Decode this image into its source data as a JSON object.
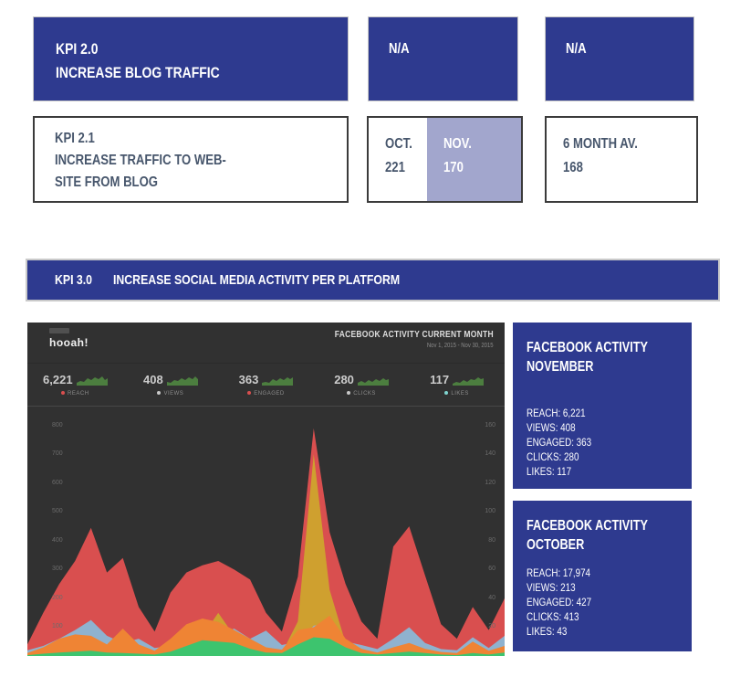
{
  "kpi2": {
    "title_line1": "KPI 2.0",
    "title_line2": "INCREASE BLOG TRAFFIC",
    "na1": "N/A",
    "na2": "N/A"
  },
  "kpi21": {
    "lines": [
      "KPI 2.1",
      "INCREASE TRAFFIC TO WEB-",
      "SITE FROM BLOG"
    ],
    "oct_label": "OCT.",
    "oct_value": "221",
    "nov_label": "NOV.",
    "nov_value": "170",
    "avg_label": "6 MONTH AV.",
    "avg_value": "168"
  },
  "kpi3": {
    "label": "KPI 3.0",
    "title": "INCREASE SOCIAL MEDIA ACTIVITY PER PLATFORM"
  },
  "dashboard": {
    "logo": "hooah!",
    "title": "FACEBOOK ACTIVITY CURRENT MONTH",
    "subtitle": "Nov 1, 2015 - Nov 30, 2015",
    "stats": [
      {
        "value": "6,221",
        "label": "REACH",
        "dot_color": "#d94f4f"
      },
      {
        "value": "408",
        "label": "VIEWS",
        "dot_color": "#c8c8c8"
      },
      {
        "value": "363",
        "label": "ENGAGED",
        "dot_color": "#d94f4f"
      },
      {
        "value": "280",
        "label": "CLICKS",
        "dot_color": "#c8c8c8"
      },
      {
        "value": "117",
        "label": "LIKES",
        "dot_color": "#7fd4cf"
      }
    ]
  },
  "chart_data": {
    "type": "area",
    "title": "FACEBOOK ACTIVITY CURRENT MONTH",
    "x_range": "Nov 1, 2015 - Nov 30, 2015",
    "x_count": 31,
    "ymax": 850,
    "left_ticks": [
      800,
      700,
      600,
      500,
      400,
      300,
      200,
      100
    ],
    "right_ticks": [
      160,
      140,
      120,
      100,
      80,
      60,
      40,
      20
    ],
    "grid": false,
    "legend_position": "none",
    "series": [
      {
        "name": "reach",
        "color": "#d94f4f",
        "values": [
          40,
          150,
          250,
          330,
          445,
          290,
          340,
          170,
          85,
          220,
          290,
          315,
          330,
          300,
          265,
          150,
          85,
          275,
          790,
          430,
          250,
          120,
          60,
          380,
          450,
          280,
          110,
          60,
          170,
          90,
          200
        ]
      },
      {
        "name": "engaged",
        "color": "#cfa02f",
        "values": [
          5,
          10,
          12,
          15,
          12,
          15,
          18,
          10,
          5,
          20,
          40,
          70,
          150,
          70,
          35,
          12,
          10,
          120,
          700,
          230,
          45,
          10,
          5,
          15,
          20,
          12,
          8,
          5,
          10,
          5,
          12
        ]
      },
      {
        "name": "views",
        "color": "#8fb2cf",
        "values": [
          20,
          35,
          60,
          90,
          125,
          70,
          45,
          60,
          28,
          35,
          55,
          65,
          75,
          95,
          60,
          88,
          38,
          50,
          105,
          115,
          50,
          38,
          24,
          60,
          100,
          45,
          24,
          20,
          65,
          28,
          70
        ]
      },
      {
        "name": "clicks",
        "color": "#ef8434",
        "values": [
          10,
          30,
          60,
          75,
          70,
          40,
          95,
          40,
          18,
          60,
          110,
          130,
          118,
          90,
          60,
          30,
          22,
          90,
          100,
          140,
          60,
          25,
          12,
          30,
          45,
          25,
          14,
          10,
          50,
          18,
          35
        ]
      },
      {
        "name": "likes",
        "color": "#3dc46e",
        "values": [
          3,
          8,
          12,
          15,
          18,
          12,
          10,
          8,
          5,
          15,
          35,
          55,
          50,
          45,
          25,
          12,
          10,
          40,
          65,
          60,
          30,
          10,
          5,
          10,
          15,
          10,
          5,
          3,
          10,
          5,
          12
        ]
      }
    ]
  },
  "panels": [
    {
      "title_line1": "FACEBOOK ACTIVITY",
      "title_line2": "NOVEMBER",
      "stats": [
        "REACH: 6,221",
        "VIEWS: 408",
        "ENGAGED: 363",
        "CLICKS: 280",
        "LIKES: 117"
      ]
    },
    {
      "title_line1": "FACEBOOK ACTIVITY",
      "title_line2": "OCTOBER",
      "stats": [
        "REACH: 17,974",
        "VIEWS: 213",
        "ENGAGED: 427",
        "CLICKS: 413",
        "LIKES: 43"
      ]
    }
  ],
  "colors": {
    "navy": "#2e3a8f",
    "nov_highlight": "#a2a6cd",
    "slate_text": "#47566c",
    "chart_bg": "#313131"
  }
}
